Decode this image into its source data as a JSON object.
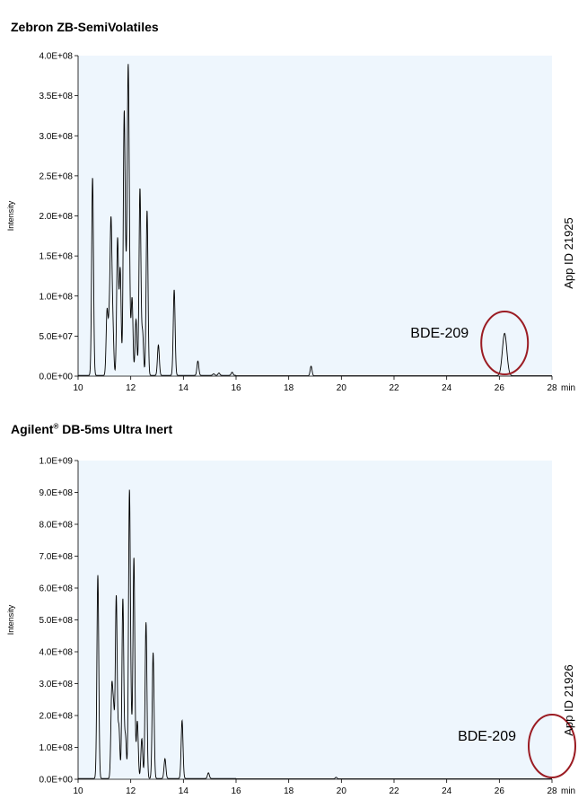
{
  "chart_data": [
    {
      "type": "line",
      "title": "Zebron ZB-SemiVolatiles",
      "title_main": "Zebron ZB-SemiVolatiles",
      "title_sup": "",
      "title_rest": "",
      "ylabel": "Intensity",
      "xunit": "min",
      "xlim": [
        10,
        28
      ],
      "ylim": [
        0,
        400000000
      ],
      "xticks": [
        10,
        12,
        14,
        16,
        18,
        20,
        22,
        24,
        26,
        28
      ],
      "yticks": [
        0,
        50000000,
        100000000,
        150000000,
        200000000,
        250000000,
        300000000,
        350000000,
        400000000
      ],
      "ytick_labels": [
        "0.0E+00",
        "5.0E+07",
        "1.0E+08",
        "1.5E+08",
        "2.0E+08",
        "2.5E+08",
        "3.0E+08",
        "3.5E+08",
        "4.0E+08"
      ],
      "plot_bg": "#eef6fd",
      "line_color": "#000000",
      "annotation": {
        "label": "BDE-209",
        "x": 26.2,
        "circle_color": "#9b1c23"
      },
      "side_label": "App ID 21925",
      "peaks": [
        {
          "x": 10.55,
          "y": 247000000
        },
        {
          "x": 11.1,
          "y": 79000000
        },
        {
          "x": 11.18,
          "y": 58000000
        },
        {
          "x": 11.25,
          "y": 183000000
        },
        {
          "x": 11.32,
          "y": 58000000
        },
        {
          "x": 11.5,
          "y": 170000000
        },
        {
          "x": 11.6,
          "y": 132000000
        },
        {
          "x": 11.75,
          "y": 318000000
        },
        {
          "x": 11.82,
          "y": 88000000
        },
        {
          "x": 11.9,
          "y": 349000000
        },
        {
          "x": 11.95,
          "y": 88000000
        },
        {
          "x": 12.05,
          "y": 96000000
        },
        {
          "x": 12.2,
          "y": 70000000
        },
        {
          "x": 12.35,
          "y": 233000000
        },
        {
          "x": 12.45,
          "y": 53000000
        },
        {
          "x": 12.62,
          "y": 206000000
        },
        {
          "x": 13.05,
          "y": 38000000
        },
        {
          "x": 13.65,
          "y": 107000000
        },
        {
          "x": 14.55,
          "y": 18000000
        },
        {
          "x": 15.15,
          "y": 2000000
        },
        {
          "x": 15.35,
          "y": 3000000
        },
        {
          "x": 15.85,
          "y": 4000000
        },
        {
          "x": 18.85,
          "y": 12000000
        },
        {
          "x": 26.2,
          "y": 53000000
        }
      ]
    },
    {
      "type": "line",
      "title": "Agilent® DB-5ms Ultra Inert",
      "title_main": "Agilent",
      "title_sup": "®",
      "title_rest": " DB-5ms Ultra Inert",
      "ylabel": "Intensity",
      "xunit": "min",
      "xlim": [
        10,
        28
      ],
      "ylim": [
        0,
        1000000000
      ],
      "xticks": [
        10,
        12,
        14,
        16,
        18,
        20,
        22,
        24,
        26,
        28
      ],
      "yticks": [
        0,
        100000000,
        200000000,
        300000000,
        400000000,
        500000000,
        600000000,
        700000000,
        800000000,
        900000000,
        1000000000
      ],
      "ytick_labels": [
        "0.0E+00",
        "1.0E+08",
        "2.0E+08",
        "3.0E+08",
        "4.0E+08",
        "5.0E+08",
        "6.0E+08",
        "7.0E+08",
        "8.0E+08",
        "9.0E+08",
        "1.0E+09"
      ],
      "plot_bg": "#eef6fd",
      "line_color": "#000000",
      "annotation": {
        "label": "BDE-209",
        "x": 28.0,
        "circle_color": "#9b1c23"
      },
      "side_label": "App ID 21926",
      "peaks": [
        {
          "x": 10.75,
          "y": 638000000
        },
        {
          "x": 11.28,
          "y": 272000000
        },
        {
          "x": 11.35,
          "y": 195000000
        },
        {
          "x": 11.45,
          "y": 570000000
        },
        {
          "x": 11.55,
          "y": 160000000
        },
        {
          "x": 11.7,
          "y": 563000000
        },
        {
          "x": 11.8,
          "y": 130000000
        },
        {
          "x": 11.95,
          "y": 887000000
        },
        {
          "x": 12.02,
          "y": 140000000
        },
        {
          "x": 12.12,
          "y": 692000000
        },
        {
          "x": 12.25,
          "y": 180000000
        },
        {
          "x": 12.42,
          "y": 125000000
        },
        {
          "x": 12.58,
          "y": 490000000
        },
        {
          "x": 12.85,
          "y": 395000000
        },
        {
          "x": 13.3,
          "y": 62000000
        },
        {
          "x": 13.95,
          "y": 182000000
        },
        {
          "x": 14.95,
          "y": 18000000
        },
        {
          "x": 19.8,
          "y": 5000000
        }
      ]
    }
  ]
}
